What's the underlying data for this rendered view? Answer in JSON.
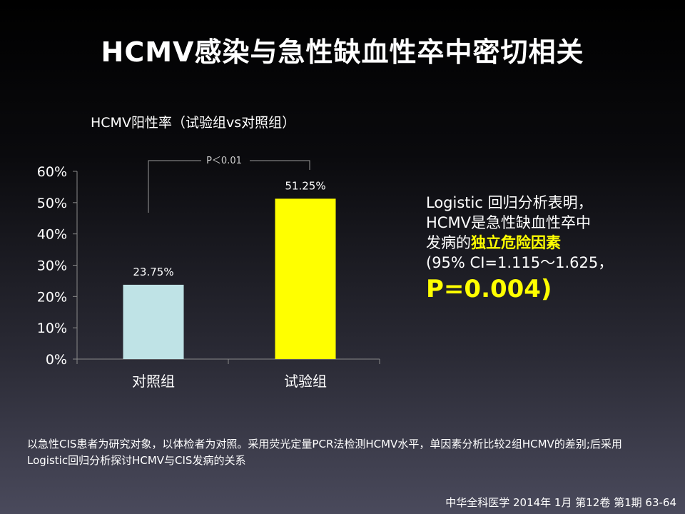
{
  "slide": {
    "title": "HCMV感染与急性缺血性卒中密切相关",
    "finding": {
      "line1": "Logistic 回归分析表明，",
      "line2": "HCMV是急性缺血性卒中",
      "line3_prefix": "发病的",
      "line3_highlight": "独立危险因素",
      "line4": "(95% CI=1.115～1.625，",
      "line5": "P=0.004)"
    },
    "method_text": "以急性CIS患者为研究对象，以体检者为对照。采用荧光定量PCR法检测HCMV水平，单因素分析比较2组HCMV的差别;后采用Logistic回归分析探讨HCMV与CIS发病的关系",
    "source": "中华全科医学 2014年 1月 第12卷 第1期 63-64"
  },
  "colors": {
    "control_bar": "#bfe3e6",
    "test_bar": "#ffff00",
    "highlight": "#ffff00",
    "text": "#ffffff"
  },
  "chart_data": {
    "type": "bar",
    "title": "HCMV阳性率（试验组vs对照组）",
    "categories": [
      "对照组",
      "试验组"
    ],
    "values": [
      23.75,
      51.25
    ],
    "value_labels": [
      "23.75%",
      "51.25%"
    ],
    "ylim": [
      0,
      60
    ],
    "y_ticks": [
      0,
      10,
      20,
      30,
      40,
      50,
      60
    ],
    "y_tick_labels": [
      "0%",
      "10%",
      "20%",
      "30%",
      "40%",
      "50%",
      "60%"
    ],
    "annotation": "P＜0.01",
    "grid": false,
    "legend": "none"
  }
}
